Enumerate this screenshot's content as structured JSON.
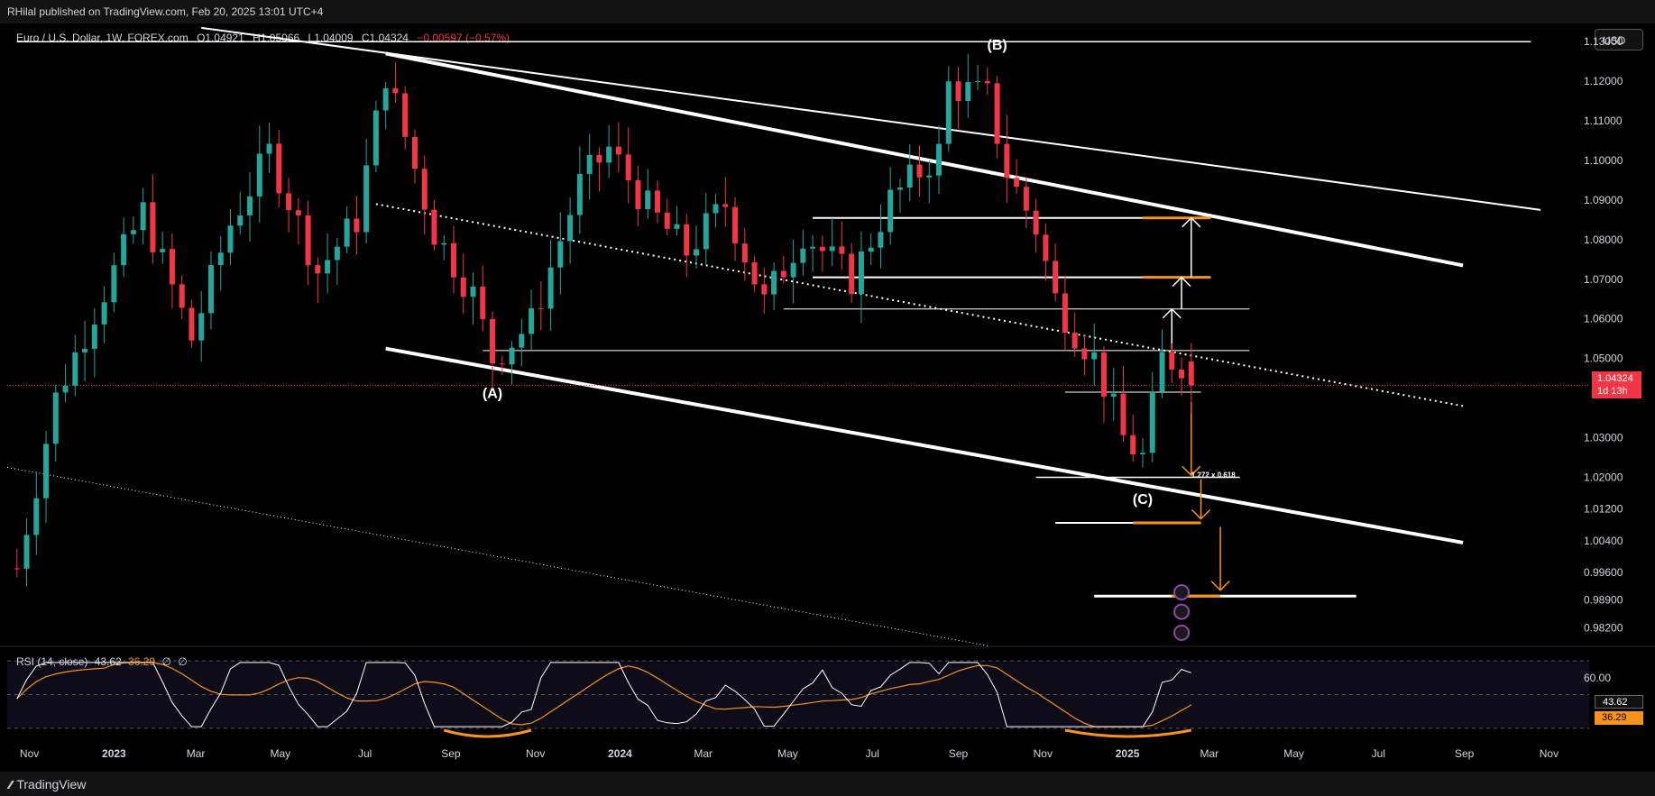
{
  "header": {
    "published": "RHilal published on TradingView.com, Feb 20, 2025 13:01 UTC+4"
  },
  "legend": {
    "symbol": "Euro / U.S. Dollar, 1W, FOREX.com",
    "open": "O1.04921",
    "high": "H1.05066",
    "low": "L1.04009",
    "close": "C1.04324",
    "change": "−0.00597 (−0.57%)"
  },
  "currency_button": "USD",
  "last_price": {
    "value": "1.04324",
    "countdown": "1d 13h"
  },
  "rsi": {
    "label": "RSI (14, close)",
    "value": "43.62",
    "ma_value": "36.29",
    "extra1": "∅",
    "extra2": "∅"
  },
  "footer": {
    "brand": "TradingView"
  },
  "colors": {
    "up": "#26a69a",
    "down": "#f23645",
    "rsi_line": "#ffffff",
    "rsi_ma": "#f7931a",
    "annotation": "#ffffff",
    "target": "#f7931a",
    "background": "#000000"
  },
  "chart_data": {
    "type": "candlestick",
    "symbol": "EURUSD",
    "timeframe": "1W",
    "x_ticks": [
      "Nov",
      "2023",
      "Mar",
      "May",
      "Jul",
      "Sep",
      "Nov",
      "2024",
      "Mar",
      "May",
      "Jul",
      "Sep",
      "Nov",
      "2025",
      "Mar",
      "May",
      "Jul",
      "Sep",
      "Nov"
    ],
    "y_ticks": [
      "1.13000",
      "1.12000",
      "1.11000",
      "1.10000",
      "1.09000",
      "1.08000",
      "1.07000",
      "1.06000",
      "1.05000",
      "1.03000",
      "1.02000",
      "1.01200",
      "1.00400",
      "0.99600",
      "0.98900",
      "0.98200"
    ],
    "x_range": [
      "2022-10-16",
      "2025-11-30"
    ],
    "ylim": [
      0.97754,
      1.1346
    ],
    "annotations": [
      {
        "text": "(A)",
        "date": "2023-10-01",
        "price": 1.04
      },
      {
        "text": "(B)",
        "date": "2024-09-29",
        "price": 1.128
      },
      {
        "text": "(C)",
        "date": "2025-01-12",
        "price": 1.0133
      },
      {
        "text": "1.272 x 0.618",
        "date": "2025-02-16",
        "price": 1.02
      }
    ],
    "levels": [
      1.13,
      1.0855,
      1.0705,
      1.0625,
      1.052,
      1.0415,
      1.02,
      1.0085,
      0.99
    ],
    "weekly_closes": [
      {
        "date": "2022-10-23",
        "close": 0.997
      },
      {
        "date": "2022-11-20",
        "close": 1.04
      },
      {
        "date": "2022-12-18",
        "close": 1.062
      },
      {
        "date": "2023-01-22",
        "close": 1.087
      },
      {
        "date": "2023-02-26",
        "close": 1.055
      },
      {
        "date": "2023-03-26",
        "close": 1.084
      },
      {
        "date": "2023-04-23",
        "close": 1.102
      },
      {
        "date": "2023-05-28",
        "close": 1.072
      },
      {
        "date": "2023-06-25",
        "close": 1.085
      },
      {
        "date": "2023-07-16",
        "close": 1.122
      },
      {
        "date": "2023-08-20",
        "close": 1.082
      },
      {
        "date": "2023-09-17",
        "close": 1.066
      },
      {
        "date": "2023-10-01",
        "close": 1.05
      },
      {
        "date": "2023-10-29",
        "close": 1.059
      },
      {
        "date": "2023-12-03",
        "close": 1.094
      },
      {
        "date": "2023-12-24",
        "close": 1.103
      },
      {
        "date": "2024-01-21",
        "close": 1.088
      },
      {
        "date": "2024-02-18",
        "close": 1.077
      },
      {
        "date": "2024-03-17",
        "close": 1.089
      },
      {
        "date": "2024-04-14",
        "close": 1.064
      },
      {
        "date": "2024-05-12",
        "close": 1.082
      },
      {
        "date": "2024-06-16",
        "close": 1.07
      },
      {
        "date": "2024-07-14",
        "close": 1.09
      },
      {
        "date": "2024-08-18",
        "close": 1.102
      },
      {
        "date": "2024-08-25",
        "close": 1.119
      },
      {
        "date": "2024-09-22",
        "close": 1.116
      },
      {
        "date": "2024-10-06",
        "close": 1.097
      },
      {
        "date": "2024-10-27",
        "close": 1.083
      },
      {
        "date": "2024-11-10",
        "close": 1.065
      },
      {
        "date": "2024-11-24",
        "close": 1.057
      },
      {
        "date": "2024-12-08",
        "close": 1.05
      },
      {
        "date": "2024-12-29",
        "close": 1.03
      },
      {
        "date": "2025-01-12",
        "close": 1.025
      },
      {
        "date": "2025-01-26",
        "close": 1.05
      },
      {
        "date": "2025-02-09",
        "close": 1.049
      },
      {
        "date": "2025-02-16",
        "close": 1.043
      }
    ],
    "rsi_ticks": [
      "60.00"
    ]
  }
}
